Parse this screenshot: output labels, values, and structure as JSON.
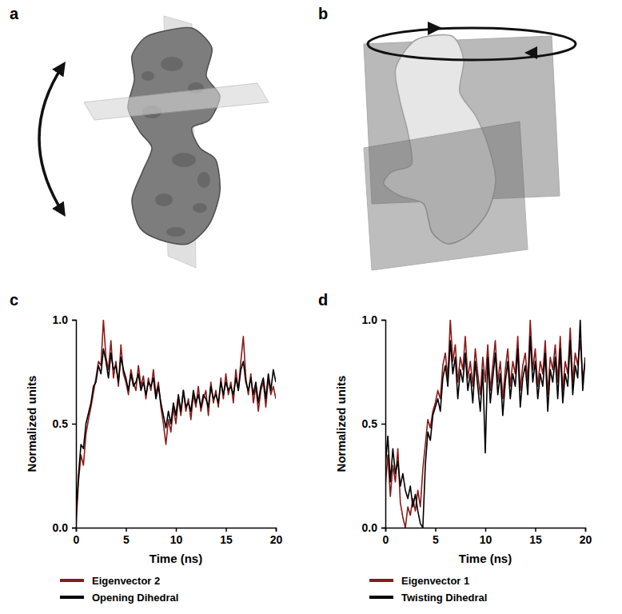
{
  "panel_labels": [
    "a",
    "b",
    "c",
    "d"
  ],
  "chart_data": [
    {
      "type": "line",
      "xlabel": "Time (ns)",
      "ylabel": "Normalized units",
      "xlim": [
        0,
        20
      ],
      "xticks": [
        0,
        5,
        10,
        15,
        20
      ],
      "ylim": [
        0,
        1
      ],
      "yticks": [
        {
          "value": 0,
          "label": "0.0"
        },
        {
          "value": 0.5,
          "label": "0.5"
        },
        {
          "value": 1,
          "label": "1.0"
        }
      ],
      "legend": "bottom",
      "x": [
        0,
        0.25,
        0.5,
        0.75,
        1,
        1.25,
        1.5,
        1.75,
        2,
        2.25,
        2.5,
        2.75,
        3,
        3.25,
        3.5,
        3.75,
        4,
        4.25,
        4.5,
        4.75,
        5,
        5.25,
        5.5,
        5.75,
        6,
        6.25,
        6.5,
        6.75,
        7,
        7.25,
        7.5,
        7.75,
        8,
        8.25,
        8.5,
        8.75,
        9,
        9.25,
        9.5,
        9.75,
        10,
        10.25,
        10.5,
        10.75,
        11,
        11.25,
        11.5,
        11.75,
        12,
        12.25,
        12.5,
        12.75,
        13,
        13.25,
        13.5,
        13.75,
        14,
        14.25,
        14.5,
        14.75,
        15,
        15.25,
        15.5,
        15.75,
        16,
        16.25,
        16.5,
        16.75,
        17,
        17.25,
        17.5,
        17.75,
        18,
        18.25,
        18.5,
        18.75,
        19,
        19.25,
        19.5,
        19.75,
        20
      ],
      "series": [
        {
          "name": "Eigenvector 2",
          "color": "#8b1a1a",
          "values": [
            0.0,
            0.22,
            0.35,
            0.3,
            0.45,
            0.52,
            0.58,
            0.65,
            0.72,
            0.8,
            0.78,
            1.0,
            0.82,
            0.76,
            0.9,
            0.72,
            0.8,
            0.68,
            0.88,
            0.74,
            0.7,
            0.64,
            0.76,
            0.7,
            0.66,
            0.78,
            0.68,
            0.73,
            0.62,
            0.72,
            0.66,
            0.76,
            0.64,
            0.7,
            0.58,
            0.5,
            0.4,
            0.52,
            0.46,
            0.58,
            0.5,
            0.62,
            0.54,
            0.66,
            0.56,
            0.62,
            0.52,
            0.64,
            0.58,
            0.68,
            0.56,
            0.62,
            0.66,
            0.54,
            0.7,
            0.6,
            0.66,
            0.58,
            0.72,
            0.62,
            0.74,
            0.64,
            0.7,
            0.6,
            0.76,
            0.66,
            0.8,
            0.92,
            0.72,
            0.64,
            0.74,
            0.6,
            0.68,
            0.56,
            0.66,
            0.7,
            0.58,
            0.72,
            0.64,
            0.68,
            0.62
          ]
        },
        {
          "name": "Opening Dihedral",
          "color": "#000000",
          "values": [
            0.05,
            0.25,
            0.4,
            0.38,
            0.5,
            0.55,
            0.6,
            0.68,
            0.7,
            0.78,
            0.74,
            0.86,
            0.8,
            0.72,
            0.84,
            0.76,
            0.78,
            0.7,
            0.82,
            0.76,
            0.72,
            0.66,
            0.74,
            0.68,
            0.7,
            0.74,
            0.66,
            0.7,
            0.64,
            0.7,
            0.68,
            0.72,
            0.62,
            0.68,
            0.6,
            0.54,
            0.48,
            0.56,
            0.5,
            0.6,
            0.54,
            0.64,
            0.56,
            0.66,
            0.58,
            0.6,
            0.56,
            0.66,
            0.6,
            0.64,
            0.58,
            0.64,
            0.62,
            0.58,
            0.68,
            0.62,
            0.64,
            0.6,
            0.7,
            0.64,
            0.7,
            0.66,
            0.68,
            0.64,
            0.72,
            0.66,
            0.76,
            0.8,
            0.7,
            0.66,
            0.72,
            0.64,
            0.7,
            0.6,
            0.68,
            0.72,
            0.62,
            0.74,
            0.66,
            0.76,
            0.7
          ]
        }
      ]
    },
    {
      "type": "line",
      "xlabel": "Time (ns)",
      "ylabel": "Normalized units",
      "xlim": [
        0,
        20
      ],
      "xticks": [
        0,
        5,
        10,
        15,
        20
      ],
      "ylim": [
        0,
        1
      ],
      "yticks": [
        {
          "value": 0,
          "label": "0.0"
        },
        {
          "value": 0.5,
          "label": "0.5"
        },
        {
          "value": 1,
          "label": "1.0"
        }
      ],
      "legend": "bottom",
      "x": [
        0,
        0.25,
        0.5,
        0.75,
        1,
        1.25,
        1.5,
        1.75,
        2,
        2.25,
        2.5,
        2.75,
        3,
        3.25,
        3.5,
        3.75,
        4,
        4.25,
        4.5,
        4.75,
        5,
        5.25,
        5.5,
        5.75,
        6,
        6.25,
        6.5,
        6.75,
        7,
        7.25,
        7.5,
        7.75,
        8,
        8.25,
        8.5,
        8.75,
        9,
        9.25,
        9.5,
        9.75,
        10,
        10.25,
        10.5,
        10.75,
        11,
        11.25,
        11.5,
        11.75,
        12,
        12.25,
        12.5,
        12.75,
        13,
        13.25,
        13.5,
        13.75,
        14,
        14.25,
        14.5,
        14.75,
        15,
        15.25,
        15.5,
        15.75,
        16,
        16.25,
        16.5,
        16.75,
        17,
        17.25,
        17.5,
        17.75,
        18,
        18.25,
        18.5,
        18.75,
        19,
        19.25,
        19.5,
        19.75,
        20
      ],
      "series": [
        {
          "name": "Eigenvector 1",
          "color": "#8b1a1a",
          "values": [
            0.2,
            0.35,
            0.15,
            0.3,
            0.22,
            0.38,
            0.12,
            0.05,
            0.0,
            0.1,
            0.06,
            0.14,
            0.08,
            0.18,
            0.1,
            0.28,
            0.4,
            0.52,
            0.48,
            0.56,
            0.6,
            0.66,
            0.62,
            0.78,
            0.84,
            0.72,
            1.0,
            0.8,
            0.88,
            0.7,
            0.82,
            0.76,
            0.92,
            0.72,
            0.8,
            0.68,
            0.86,
            0.74,
            0.64,
            0.82,
            0.7,
            0.88,
            0.66,
            0.78,
            0.9,
            0.7,
            0.8,
            0.62,
            0.76,
            0.86,
            0.68,
            0.8,
            0.74,
            0.92,
            0.66,
            0.78,
            0.84,
            0.7,
            1.0,
            0.76,
            0.86,
            0.68,
            0.8,
            0.74,
            0.9,
            0.64,
            0.82,
            0.76,
            0.88,
            0.7,
            0.92,
            0.66,
            0.8,
            0.74,
            0.96,
            0.7,
            0.84,
            0.78,
            0.9,
            0.72,
            0.8
          ]
        },
        {
          "name": "Twisting Dihedral",
          "color": "#000000",
          "values": [
            0.3,
            0.44,
            0.22,
            0.38,
            0.26,
            0.32,
            0.2,
            0.26,
            0.18,
            0.14,
            0.2,
            0.1,
            0.16,
            0.08,
            0.02,
            0.0,
            0.3,
            0.46,
            0.42,
            0.54,
            0.58,
            0.62,
            0.56,
            0.72,
            0.78,
            0.68,
            0.9,
            0.74,
            0.82,
            0.62,
            0.76,
            0.7,
            0.84,
            0.66,
            0.74,
            0.6,
            0.8,
            0.68,
            0.56,
            0.76,
            0.36,
            0.82,
            0.6,
            0.72,
            0.84,
            0.64,
            0.74,
            0.54,
            0.7,
            0.8,
            0.62,
            0.74,
            0.68,
            0.86,
            0.58,
            0.72,
            0.78,
            0.64,
            0.92,
            0.7,
            0.8,
            0.62,
            0.74,
            0.68,
            0.84,
            0.56,
            0.76,
            0.7,
            0.82,
            0.62,
            0.86,
            0.6,
            0.74,
            0.68,
            0.9,
            0.64,
            0.78,
            0.72,
            1.0,
            0.66,
            0.82
          ]
        }
      ]
    }
  ]
}
